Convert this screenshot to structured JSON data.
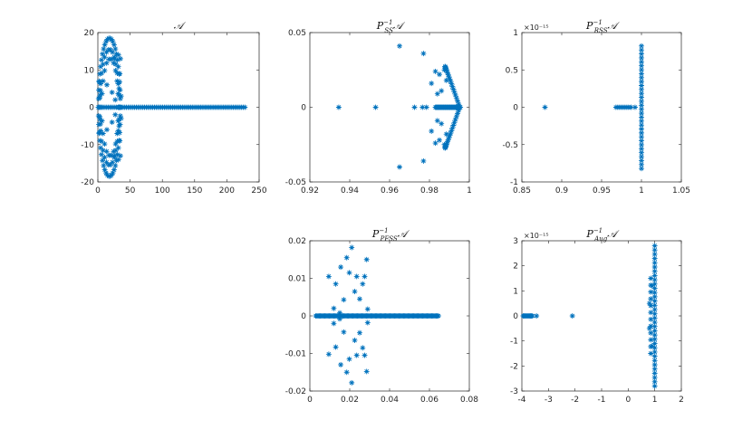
{
  "figure": {
    "marker_color": "#0072BD",
    "marker_symbol": "asterisk"
  },
  "chart_data": [
    {
      "id": "A",
      "type": "scatter",
      "title": {
        "base": "𝒜",
        "sup": "",
        "sub": "",
        "suffix": ""
      },
      "xlim": [
        0,
        250
      ],
      "ylim": [
        -20,
        20
      ],
      "xticks": [
        0,
        50,
        100,
        150,
        200,
        250
      ],
      "yticks": [
        -20,
        -10,
        0,
        10,
        20
      ],
      "xticklabels": [
        "0",
        "50",
        "100",
        "150",
        "200",
        "250"
      ],
      "yticklabels": [
        "-20",
        "-10",
        "0",
        "10",
        "20"
      ],
      "exponent_label": "",
      "generators": [
        {
          "kind": "line",
          "y": 0,
          "x0": 1,
          "x1": 228,
          "n": 90
        },
        {
          "kind": "arc",
          "xmin": 1,
          "xmax": 35,
          "ymax": 18.5,
          "n": 26
        },
        {
          "kind": "arc",
          "xmin": 3,
          "xmax": 33,
          "ymax": 15.5,
          "n": 16
        },
        {
          "kind": "arc",
          "xmin": 6,
          "xmax": 32,
          "ymax": 13,
          "n": 12
        }
      ],
      "points": [
        [
          2,
          7
        ],
        [
          2,
          -7
        ],
        [
          3,
          2.5
        ],
        [
          3,
          -2.5
        ],
        [
          4,
          4.5
        ],
        [
          4,
          -4.5
        ],
        [
          22,
          4
        ],
        [
          22,
          -4
        ],
        [
          27,
          2
        ],
        [
          27,
          -2
        ],
        [
          33,
          5
        ],
        [
          33,
          -5
        ],
        [
          34,
          9
        ],
        [
          34,
          -9
        ],
        [
          35,
          13
        ],
        [
          35,
          -13
        ],
        [
          32,
          14
        ],
        [
          32,
          -14
        ],
        [
          36,
          3
        ],
        [
          36,
          -3
        ],
        [
          14,
          6
        ],
        [
          14,
          -6
        ],
        [
          26,
          13
        ],
        [
          26,
          -13
        ]
      ]
    },
    {
      "id": "PSS",
      "type": "scatter",
      "title": {
        "base": "P",
        "sup": "−1",
        "sub": "SS",
        "suffix": "𝒜"
      },
      "xlim": [
        0.92,
        1.0
      ],
      "ylim": [
        -0.05,
        0.05
      ],
      "xticks": [
        0.92,
        0.94,
        0.96,
        0.98,
        1.0
      ],
      "yticks": [
        -0.05,
        0,
        0.05
      ],
      "xticklabels": [
        "0.92",
        "0.94",
        "0.96",
        "0.98",
        "1"
      ],
      "yticklabels": [
        "-0.05",
        "0",
        "0.05"
      ],
      "exponent_label": "",
      "generators": [
        {
          "kind": "line",
          "y": 0,
          "x0": 0.983,
          "x1": 0.9955,
          "n": 40
        },
        {
          "kind": "rcurve",
          "xc": 0.9952,
          "xmin": 0.987,
          "ymax": 0.028,
          "n": 22
        }
      ],
      "points": [
        [
          0.9345,
          0
        ],
        [
          0.953,
          0
        ],
        [
          0.9725,
          0
        ],
        [
          0.9765,
          0
        ],
        [
          0.9785,
          0
        ],
        [
          0.965,
          0.041
        ],
        [
          0.965,
          -0.04
        ],
        [
          0.977,
          0.036
        ],
        [
          0.977,
          -0.036
        ],
        [
          0.983,
          0.024
        ],
        [
          0.983,
          -0.024
        ],
        [
          0.985,
          0.022
        ],
        [
          0.985,
          -0.022
        ],
        [
          0.981,
          0.016
        ],
        [
          0.981,
          -0.016
        ],
        [
          0.9875,
          0.025
        ],
        [
          0.9875,
          -0.025
        ],
        [
          0.9885,
          0.018
        ],
        [
          0.9885,
          -0.018
        ],
        [
          0.986,
          0.011
        ],
        [
          0.986,
          -0.011
        ],
        [
          0.984,
          0.009
        ],
        [
          0.984,
          -0.009
        ]
      ]
    },
    {
      "id": "RSS",
      "type": "scatter",
      "title": {
        "base": "P",
        "sup": "−1",
        "sub": "RSS",
        "suffix": "𝒜"
      },
      "xlim": [
        0.85,
        1.05
      ],
      "ylim": [
        -1e-15,
        1e-15
      ],
      "xticks": [
        0.85,
        0.9,
        0.95,
        1.0,
        1.05
      ],
      "yticks": [
        -1e-15,
        -5e-16,
        0,
        5e-16,
        1e-15
      ],
      "xticklabels": [
        "0.85",
        "0.9",
        "0.95",
        "1",
        "1.05"
      ],
      "yticklabels": [
        "-1",
        "-0.5",
        "0",
        "0.5",
        "1"
      ],
      "exponent_label": "×10⁻¹⁵",
      "generators": [
        {
          "kind": "line",
          "y": 0,
          "x0": 0.968,
          "x1": 0.984,
          "n": 8
        },
        {
          "kind": "vline",
          "x": 1.0,
          "y0": -8.2e-16,
          "y1": 8.2e-16,
          "n": 32
        }
      ],
      "points": [
        [
          0.879,
          0
        ],
        [
          0.987,
          0
        ],
        [
          0.992,
          0
        ]
      ]
    },
    {
      "id": "PFSS",
      "type": "scatter",
      "title": {
        "base": "P",
        "sup": "−1",
        "sub": "PFSS",
        "suffix": "𝒜"
      },
      "xlim": [
        0,
        0.08
      ],
      "ylim": [
        -0.02,
        0.02
      ],
      "xticks": [
        0,
        0.02,
        0.04,
        0.06,
        0.08
      ],
      "yticks": [
        -0.02,
        -0.01,
        0,
        0.01,
        0.02
      ],
      "xticklabels": [
        "0",
        "0.02",
        "0.04",
        "0.06",
        "0.08"
      ],
      "yticklabels": [
        "-0.02",
        "-0.01",
        "0",
        "0.01",
        "0.02"
      ],
      "exponent_label": "",
      "generators": [
        {
          "kind": "line",
          "y": 0,
          "x0": 0.003,
          "x1": 0.0645,
          "n": 110
        }
      ],
      "points": [
        [
          0.0095,
          0.0105
        ],
        [
          0.0095,
          -0.0102
        ],
        [
          0.013,
          0.0085
        ],
        [
          0.013,
          -0.0083
        ],
        [
          0.0155,
          0.013
        ],
        [
          0.0155,
          -0.013
        ],
        [
          0.017,
          0.0043
        ],
        [
          0.017,
          -0.0043
        ],
        [
          0.0185,
          0.0155
        ],
        [
          0.0185,
          -0.015
        ],
        [
          0.0198,
          0.0115
        ],
        [
          0.0198,
          -0.0115
        ],
        [
          0.021,
          0.0182
        ],
        [
          0.021,
          -0.0178
        ],
        [
          0.0225,
          0.0065
        ],
        [
          0.0225,
          -0.0065
        ],
        [
          0.0235,
          0.0105
        ],
        [
          0.0235,
          -0.0105
        ],
        [
          0.025,
          0.0045
        ],
        [
          0.025,
          -0.0045
        ],
        [
          0.0265,
          0.0085
        ],
        [
          0.0265,
          -0.0085
        ],
        [
          0.0285,
          0.015
        ],
        [
          0.0285,
          -0.0148
        ],
        [
          0.0275,
          0.0105
        ],
        [
          0.0275,
          -0.0105
        ],
        [
          0.029,
          0.0018
        ],
        [
          0.029,
          -0.0018
        ],
        [
          0.012,
          0.002
        ],
        [
          0.012,
          -0.002
        ],
        [
          0.015,
          0.0008
        ],
        [
          0.015,
          -0.0008
        ]
      ]
    },
    {
      "id": "Aug",
      "type": "scatter",
      "title": {
        "base": "P",
        "sup": "−1",
        "sub": "Aug",
        "suffix": "𝒜"
      },
      "xlim": [
        -4,
        2
      ],
      "ylim": [
        -3e-15,
        3e-15
      ],
      "xticks": [
        -4,
        -3,
        -2,
        -1,
        0,
        1,
        2
      ],
      "yticks": [
        -3e-15,
        -2e-15,
        -1e-15,
        0,
        1e-15,
        2e-15,
        3e-15
      ],
      "xticklabels": [
        "-4",
        "-3",
        "-2",
        "-1",
        "0",
        "1",
        "2"
      ],
      "yticklabels": [
        "-3",
        "-2",
        "-1",
        "0",
        "1",
        "2",
        "3"
      ],
      "exponent_label": "×10⁻¹⁵",
      "generators": [
        {
          "kind": "line",
          "y": 0,
          "x0": -3.95,
          "x1": -3.6,
          "n": 10
        },
        {
          "kind": "vline",
          "x": 1.0,
          "y0": -2.8e-15,
          "y1": 2.8e-15,
          "n": 34
        },
        {
          "kind": "vline",
          "x": 0.85,
          "y0": -1.5e-15,
          "y1": 1.5e-15,
          "n": 12
        }
      ],
      "points": [
        [
          -3.45,
          0
        ],
        [
          -2.1,
          0
        ],
        [
          0.8,
          5e-16
        ],
        [
          0.8,
          -5e-16
        ],
        [
          0.9,
          1.2e-15
        ],
        [
          0.9,
          -1.2e-15
        ]
      ]
    }
  ]
}
